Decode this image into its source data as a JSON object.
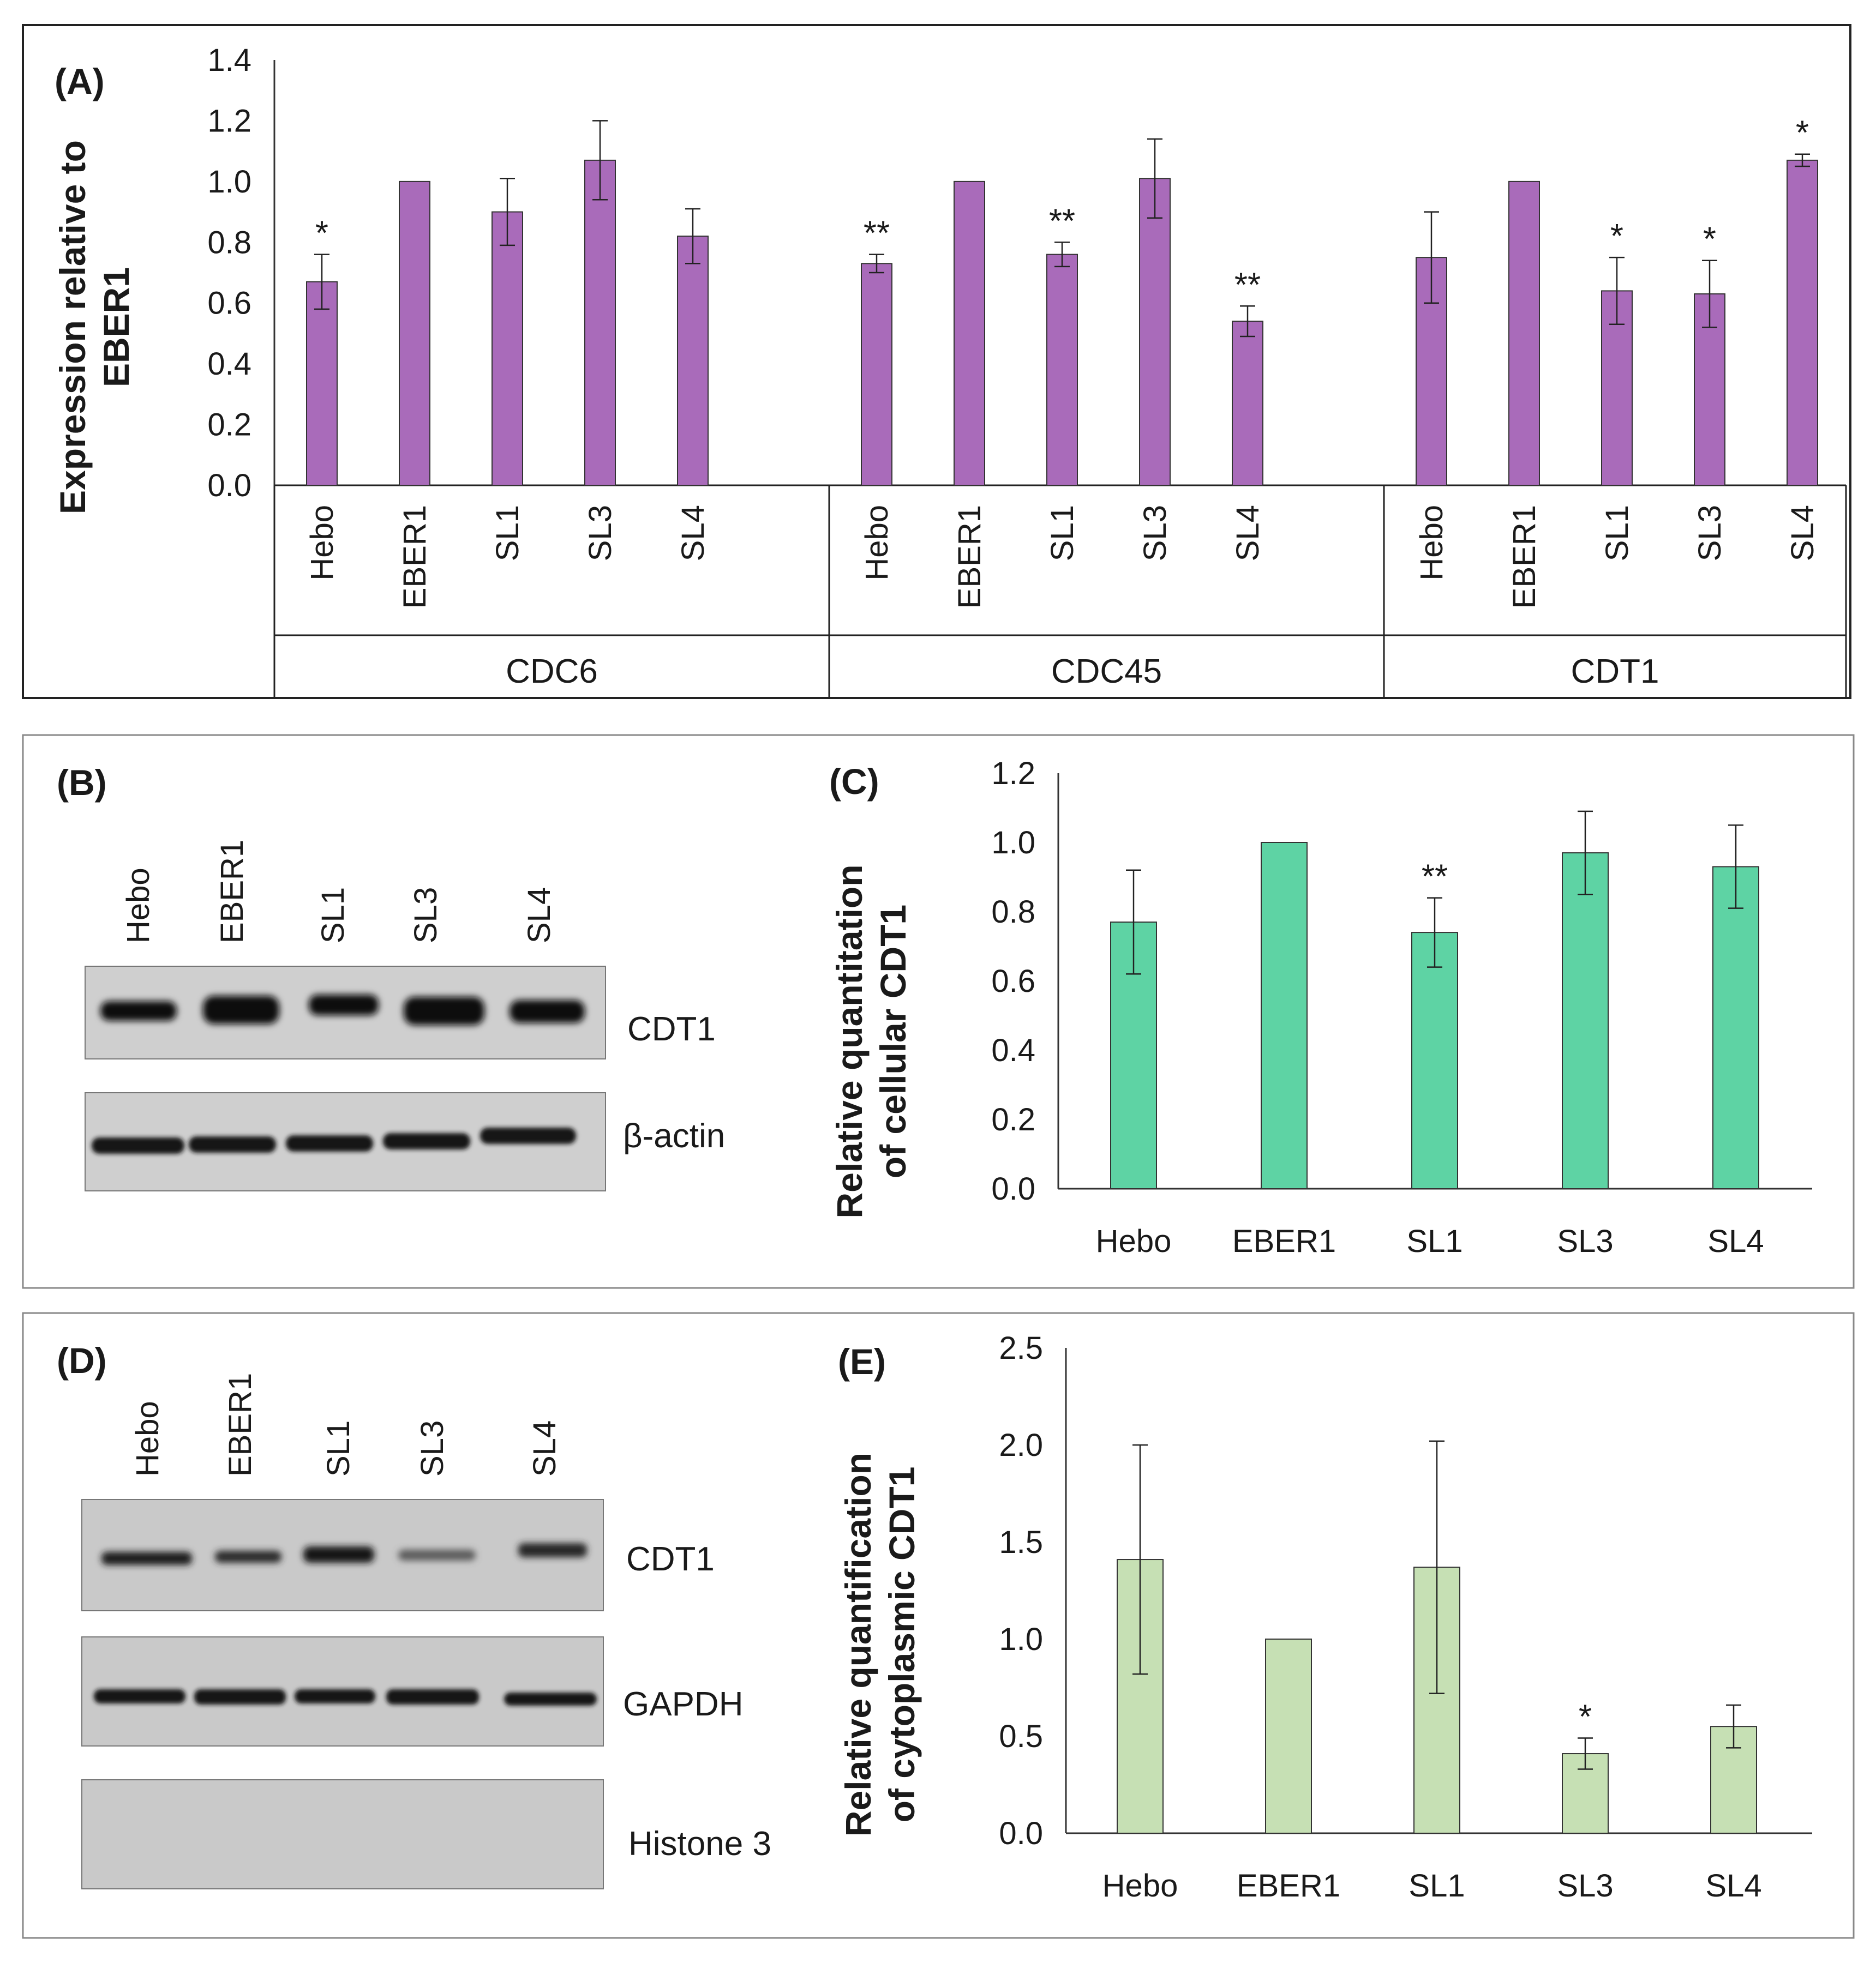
{
  "chart_data": [
    {
      "panel": "(A)",
      "type": "bar",
      "ylabel_lines": [
        "Expression relative to",
        "EBER1"
      ],
      "ylim": [
        0,
        1.4
      ],
      "yticks": [
        "0.0",
        "0.2",
        "0.4",
        "0.6",
        "0.8",
        "1.0",
        "1.2",
        "1.4"
      ],
      "color": "#a96bba",
      "groups": [
        {
          "name": "CDC6",
          "categories": [
            "Hebo",
            "EBER1",
            "SL1",
            "SL3",
            "SL4"
          ],
          "values": [
            0.67,
            1.0,
            0.9,
            1.07,
            0.82
          ],
          "errors": [
            0.09,
            0.0,
            0.11,
            0.13,
            0.09
          ],
          "sig": [
            "*",
            "",
            "",
            "",
            ""
          ]
        },
        {
          "name": "CDC45",
          "categories": [
            "Hebo",
            "EBER1",
            "SL1",
            "SL3",
            "SL4"
          ],
          "values": [
            0.73,
            1.0,
            0.76,
            1.01,
            0.54
          ],
          "errors": [
            0.03,
            0.0,
            0.04,
            0.13,
            0.05
          ],
          "sig": [
            "**",
            "",
            "**",
            "",
            "**"
          ]
        },
        {
          "name": "CDT1",
          "categories": [
            "Hebo",
            "EBER1",
            "SL1",
            "SL3",
            "SL4"
          ],
          "values": [
            0.75,
            1.0,
            0.64,
            0.63,
            1.07
          ],
          "errors": [
            0.15,
            0.0,
            0.11,
            0.11,
            0.02
          ],
          "sig": [
            "",
            "",
            "*",
            "*",
            "*"
          ]
        }
      ]
    },
    {
      "panel": "(C)",
      "type": "bar",
      "ylabel_lines": [
        "Relative quantitation",
        "of cellular CDT1"
      ],
      "ylim": [
        0,
        1.2
      ],
      "yticks": [
        "0.0",
        "0.2",
        "0.4",
        "0.6",
        "0.8",
        "1.0",
        "1.2"
      ],
      "color": "#5ed3a4",
      "categories": [
        "Hebo",
        "EBER1",
        "SL1",
        "SL3",
        "SL4"
      ],
      "values": [
        0.77,
        1.0,
        0.74,
        0.97,
        0.93
      ],
      "errors": [
        0.15,
        0.0,
        0.1,
        0.12,
        0.12
      ],
      "sig": [
        "",
        "",
        "**",
        "",
        ""
      ]
    },
    {
      "panel": "(E)",
      "type": "bar",
      "ylabel_lines": [
        "Relative quantification",
        "of cytoplasmic CDT1"
      ],
      "ylim": [
        0,
        2.5
      ],
      "yticks": [
        "0.0",
        "0.5",
        "1.0",
        "1.5",
        "2.0",
        "2.5"
      ],
      "color": "#c6e0b4",
      "categories": [
        "Hebo",
        "EBER1",
        "SL1",
        "SL3",
        "SL4"
      ],
      "values": [
        1.41,
        1.0,
        1.37,
        0.41,
        0.55
      ],
      "errors": [
        0.59,
        0.0,
        0.65,
        0.08,
        0.11
      ],
      "sig": [
        "",
        "",
        "",
        "*",
        ""
      ]
    }
  ],
  "blot_B": {
    "panel": "(B)",
    "lanes": [
      "Hebo",
      "EBER1",
      "SL1",
      "SL3",
      "SL4"
    ],
    "rows": [
      "CDT1",
      "β-actin"
    ]
  },
  "blot_D": {
    "panel": "(D)",
    "lanes": [
      "Hebo",
      "EBER1",
      "SL1",
      "SL3",
      "SL4"
    ],
    "rows": [
      "CDT1",
      "GAPDH",
      "Histone 3"
    ]
  }
}
